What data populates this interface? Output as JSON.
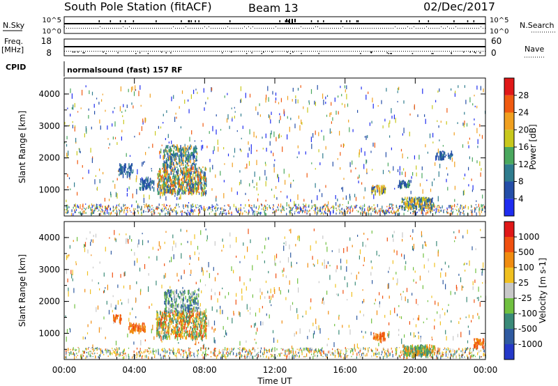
{
  "header": {
    "station": "South Pole Station (fitACF)",
    "beam": "Beam 13",
    "date": "02/Dec/2017"
  },
  "strips": {
    "nsky_label": "N.Sky",
    "nsky_top": "10^5",
    "nsky_bottom": "10^0",
    "nsearch_label": "N.Search",
    "nsearch_top": "10^5",
    "nsearch_bottom": "10^0",
    "freq_label": "Freq.",
    "freq_unit": "[MHz]",
    "freq_top": "18",
    "freq_bottom": "8",
    "nave_label": "Nave",
    "nave_top": "60",
    "nave_bottom": "0",
    "cpid_label": "CPID",
    "cpid_value": "normalsound (fast) 157 RF"
  },
  "chart_data": [
    {
      "type": "heatmap",
      "name": "power",
      "ylabel": "Slant Range [km]",
      "xlabel": "",
      "colorbar_label": "Power [dB]",
      "colorbar_ticks": [
        "4",
        "8",
        "12",
        "16",
        "20",
        "24",
        "28"
      ],
      "colorbar_colors": [
        "#1e2cf0",
        "#244ea8",
        "#2f7c8e",
        "#4aa85e",
        "#c8c81c",
        "#f0a020",
        "#f05a10",
        "#e01818"
      ],
      "xlim": [
        0,
        24
      ],
      "ylim": [
        180,
        4500
      ],
      "x_ticks": [
        "00:00",
        "04:00",
        "08:00",
        "12:00",
        "16:00",
        "20:00",
        "00:00"
      ],
      "y_ticks": [
        "1000",
        "2000",
        "3000",
        "4000"
      ],
      "grid": false,
      "legend": "right"
    },
    {
      "type": "heatmap",
      "name": "velocity",
      "ylabel": "Slant Range [km]",
      "xlabel": "Time UT",
      "colorbar_label": "Velocity [m s-1]",
      "colorbar_ticks": [
        "1000",
        "500",
        "100",
        "25",
        "-25",
        "-100",
        "-500",
        "-1000"
      ],
      "colorbar_colors": [
        "#2438c8",
        "#2f5aa0",
        "#3a8a78",
        "#70c040",
        "#c8c8c8",
        "#f0c020",
        "#f08c10",
        "#f05010",
        "#e01818"
      ],
      "xlim": [
        0,
        24
      ],
      "ylim": [
        180,
        4500
      ],
      "x_ticks": [
        "00:00",
        "04:00",
        "08:00",
        "12:00",
        "16:00",
        "20:00",
        "00:00"
      ],
      "y_ticks": [
        "1000",
        "2000",
        "3000",
        "4000"
      ],
      "grid": false,
      "legend": "right"
    }
  ]
}
